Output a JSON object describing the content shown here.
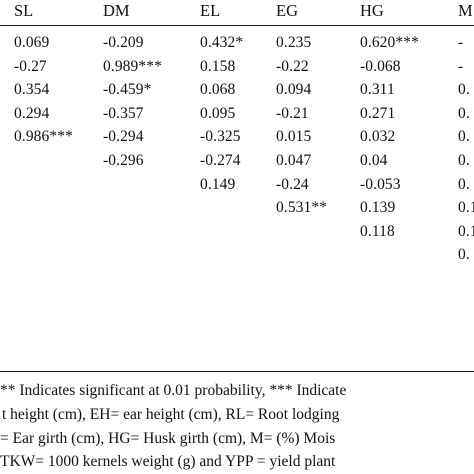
{
  "table": {
    "columns": [
      "SL",
      "DM",
      "EL",
      "EG",
      "HG",
      "M"
    ],
    "column_values": [
      [
        "0.069",
        "-0.27",
        "0.354",
        "0.294",
        "0.986***"
      ],
      [
        "-0.209",
        "0.989***",
        "-0.459*",
        "-0.357",
        "-0.294",
        "-0.296"
      ],
      [
        "0.432*",
        "0.158",
        "0.068",
        "0.095",
        "-0.325",
        "-0.274",
        "0.149"
      ],
      [
        "0.235",
        "-0.22",
        "0.094",
        "-0.21",
        "0.015",
        "0.047",
        "-0.24",
        "0.531**"
      ],
      [
        "0.620***",
        "-0.068",
        "0.311",
        "0.271",
        "0.032",
        "0.04",
        "-0.053",
        "0.139",
        "0.118"
      ],
      [
        "-",
        "-",
        "0.",
        "0.",
        "0.",
        "0.",
        "0.",
        "0.1",
        "0.1",
        "0."
      ]
    ]
  },
  "footnotes": [
    "** Indicates significant at 0.01 probability, *** Indicate",
    "t height (cm), EH= ear height (cm), RL= Root lodging",
    "= Ear girth (cm), HG= Husk girth (cm), M= (%) Mois",
    "TKW= 1000 kernels weight (g) and YPP = yield plant"
  ]
}
